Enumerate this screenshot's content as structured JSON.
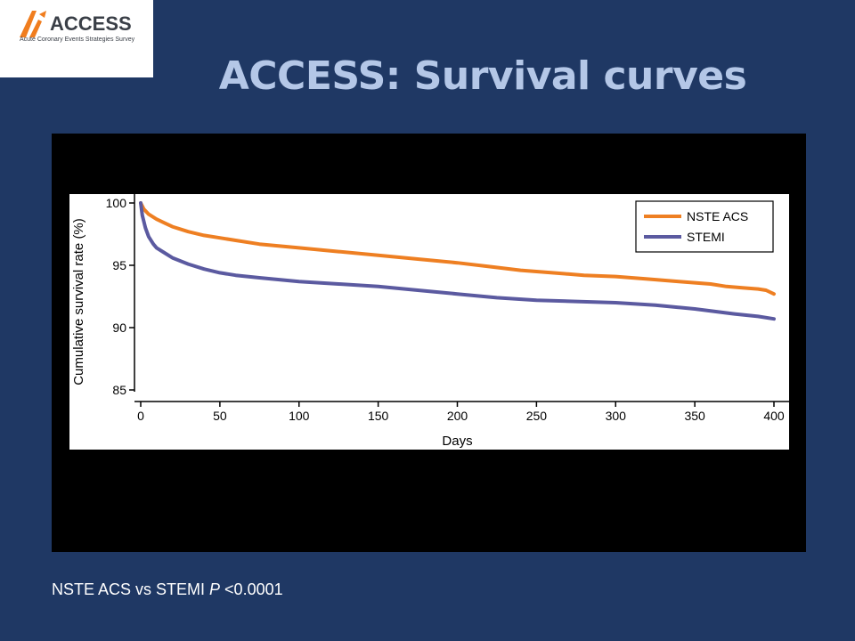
{
  "logo": {
    "name": "ACCESS",
    "tagline": "Acute Coronary Events Strategies Survey",
    "colors": {
      "orange": "#f07d1e",
      "dark": "#3a3f47"
    }
  },
  "title": "ACCESS: Survival curves",
  "footnote": {
    "prefix": "NSTE ACS vs STEMI ",
    "p_label": "P",
    "suffix": " <0.0001"
  },
  "chart_data": {
    "type": "line",
    "title": "",
    "xlabel": "Days",
    "ylabel": "Cumulative survival rate (%)",
    "xlim": [
      0,
      400
    ],
    "ylim": [
      85,
      100
    ],
    "xticks": [
      0,
      50,
      100,
      150,
      200,
      250,
      300,
      350,
      400
    ],
    "yticks": [
      85,
      90,
      95,
      100
    ],
    "grid": false,
    "legend_position": "top-right",
    "series": [
      {
        "name": "NSTE ACS",
        "color": "#ee7f22",
        "x": [
          0,
          2,
          5,
          10,
          15,
          20,
          30,
          40,
          50,
          60,
          75,
          100,
          125,
          150,
          175,
          200,
          220,
          240,
          260,
          270,
          280,
          300,
          320,
          340,
          360,
          370,
          380,
          390,
          395,
          400
        ],
        "y": [
          100,
          99.5,
          99.1,
          98.7,
          98.4,
          98.1,
          97.7,
          97.4,
          97.2,
          97.0,
          96.7,
          96.4,
          96.1,
          95.8,
          95.5,
          95.2,
          94.9,
          94.6,
          94.4,
          94.3,
          94.2,
          94.1,
          93.9,
          93.7,
          93.5,
          93.3,
          93.2,
          93.1,
          93.0,
          92.7
        ]
      },
      {
        "name": "STEMI",
        "color": "#5b5aa0",
        "x": [
          0,
          1,
          3,
          5,
          8,
          10,
          15,
          20,
          30,
          40,
          50,
          60,
          75,
          100,
          125,
          150,
          175,
          200,
          225,
          250,
          275,
          300,
          325,
          350,
          375,
          390,
          400
        ],
        "y": [
          100,
          99.0,
          98.0,
          97.3,
          96.7,
          96.4,
          96.0,
          95.6,
          95.1,
          94.7,
          94.4,
          94.2,
          94.0,
          93.7,
          93.5,
          93.3,
          93.0,
          92.7,
          92.4,
          92.2,
          92.1,
          92.0,
          91.8,
          91.5,
          91.1,
          90.9,
          90.7
        ]
      }
    ]
  }
}
